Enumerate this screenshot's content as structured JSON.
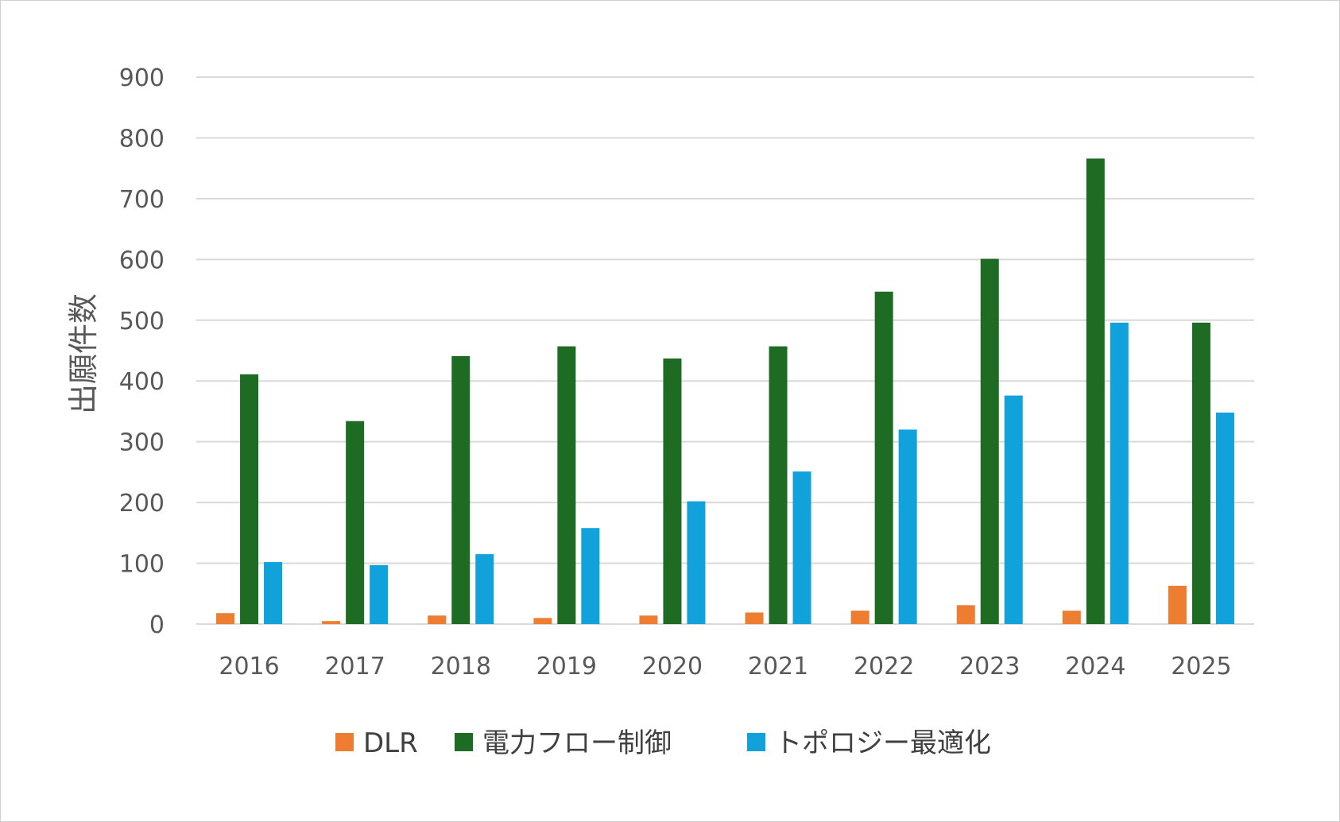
{
  "chart_data": {
    "type": "bar",
    "categories": [
      "2016",
      "2017",
      "2018",
      "2019",
      "2020",
      "2021",
      "2022",
      "2023",
      "2024",
      "2025"
    ],
    "series": [
      {
        "name": "DLR",
        "color": "#ED7D31",
        "values": [
          18,
          5,
          14,
          10,
          14,
          19,
          22,
          31,
          22,
          63
        ]
      },
      {
        "name": "電力フロー制御",
        "color": "#1E6B24",
        "values": [
          411,
          334,
          441,
          457,
          437,
          457,
          547,
          601,
          766,
          496
        ]
      },
      {
        "name": "トポロジー最適化",
        "color": "#11A2DB",
        "values": [
          102,
          97,
          115,
          158,
          202,
          251,
          320,
          376,
          496,
          348
        ]
      }
    ],
    "ylabel": "出願件数",
    "xlabel": "",
    "ylim": [
      0,
      900
    ],
    "yticks": [
      0,
      100,
      200,
      300,
      400,
      500,
      600,
      700,
      800,
      900
    ],
    "grid": true,
    "legend_position": "bottom"
  }
}
